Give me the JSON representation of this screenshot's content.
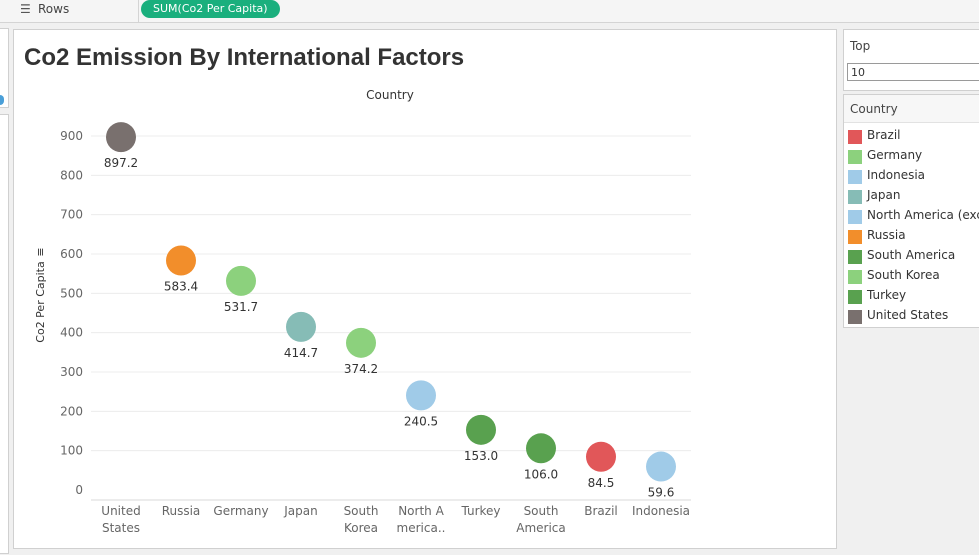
{
  "shelf": {
    "rows_label": "Rows",
    "pill_label": "SUM(Co2 Per Capita)",
    "rows_icon": "list-icon"
  },
  "title": "Co2 Emission By International Factors",
  "filter": {
    "title": "Top",
    "value": "10"
  },
  "legend": {
    "title": "Country",
    "items": [
      {
        "label": "Brazil",
        "color": "#e15759"
      },
      {
        "label": "Germany",
        "color": "#8cd17d"
      },
      {
        "label": "Indonesia",
        "color": "#a0cbe8"
      },
      {
        "label": "Japan",
        "color": "#86bcb6"
      },
      {
        "label": "North America (excl",
        "color": "#a0cbe8"
      },
      {
        "label": "Russia",
        "color": "#f28e2b"
      },
      {
        "label": "South America",
        "color": "#59a14f"
      },
      {
        "label": "South Korea",
        "color": "#8cd17d"
      },
      {
        "label": "Turkey",
        "color": "#59a14f"
      },
      {
        "label": "United States",
        "color": "#79706e"
      }
    ]
  },
  "chart_data": {
    "type": "scatter",
    "column_header": "Country",
    "ylabel": "Co2 Per Capita",
    "ylim": [
      0,
      950
    ],
    "yticks": [
      0,
      100,
      200,
      300,
      400,
      500,
      600,
      700,
      800,
      900
    ],
    "gridlines": "horizontal",
    "categories": [
      [
        "United",
        "States"
      ],
      [
        "Russia"
      ],
      [
        "Germany"
      ],
      [
        "Japan"
      ],
      [
        "South",
        "Korea"
      ],
      [
        "North A",
        "merica.."
      ],
      [
        "Turkey"
      ],
      [
        "South",
        "America"
      ],
      [
        "Brazil"
      ],
      [
        "Indonesia"
      ]
    ],
    "values": [
      897.2,
      583.4,
      531.7,
      414.7,
      374.2,
      240.5,
      153.0,
      106.0,
      84.5,
      59.6
    ],
    "value_labels": [
      "897.2",
      "583.4",
      "531.7",
      "414.7",
      "374.2",
      "240.5",
      "153.0",
      "106.0",
      "84.5",
      "59.6"
    ],
    "colors": [
      "#79706e",
      "#f28e2b",
      "#8cd17d",
      "#86bcb6",
      "#8cd17d",
      "#a0cbe8",
      "#59a14f",
      "#59a14f",
      "#e15759",
      "#a0cbe8"
    ]
  }
}
